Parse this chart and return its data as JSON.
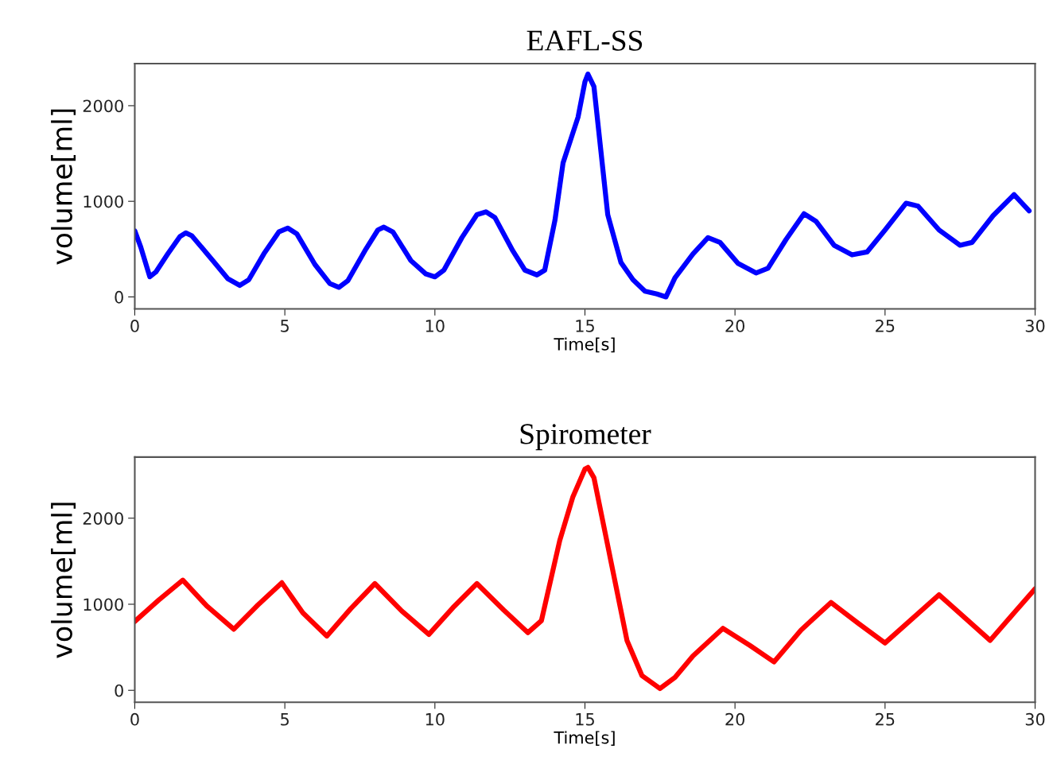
{
  "chart_data": [
    {
      "type": "line",
      "title": "EAFL-SS",
      "xlabel": "Time[s]",
      "ylabel": "volume[ml]",
      "xlim": [
        0,
        30
      ],
      "ylim": [
        -125,
        2440
      ],
      "xticks": [
        0,
        5,
        10,
        15,
        20,
        25,
        30
      ],
      "yticks": [
        0,
        1000,
        2000
      ],
      "grid": false,
      "legend": false,
      "marker": "none",
      "line_style": "solid",
      "series": [
        {
          "color": "#0000ff",
          "x": [
            0,
            0.2,
            0.5,
            0.7,
            1.1,
            1.5,
            1.7,
            1.9,
            2.6,
            3.1,
            3.5,
            3.8,
            4.3,
            4.8,
            5.1,
            5.4,
            6.0,
            6.5,
            6.8,
            7.1,
            7.7,
            8.1,
            8.3,
            8.6,
            9.2,
            9.7,
            10,
            10.3,
            10.9,
            11.4,
            11.7,
            12.0,
            12.6,
            13.0,
            13.4,
            13.66,
            14.0,
            14.27,
            14.77,
            15.0,
            15.1,
            15.3,
            15.76,
            16.2,
            16.6,
            17,
            17.4,
            17.7,
            18.0,
            18.6,
            19.1,
            19.5,
            20.1,
            20.7,
            21.1,
            21.7,
            22.3,
            22.7,
            23.3,
            23.9,
            24.4,
            25.0,
            25.7,
            26.1,
            26.8,
            27.5,
            27.9,
            28.6,
            29.3,
            29.8
          ],
          "values": [
            690,
            520,
            210,
            260,
            450,
            630,
            670,
            640,
            380,
            190,
            120,
            180,
            450,
            680,
            720,
            660,
            340,
            140,
            100,
            170,
            500,
            700,
            730,
            680,
            380,
            240,
            210,
            280,
            620,
            860,
            890,
            830,
            480,
            280,
            230,
            280,
            800,
            1400,
            1880,
            2250,
            2330,
            2200,
            860,
            360,
            180,
            60,
            30,
            0,
            200,
            450,
            620,
            570,
            350,
            250,
            300,
            600,
            870,
            790,
            540,
            440,
            470,
            700,
            980,
            950,
            700,
            540,
            570,
            850,
            1070,
            900
          ]
        }
      ]
    },
    {
      "type": "line",
      "title": "Spirometer",
      "xlabel": "Time[s]",
      "ylabel": "volume[ml]",
      "xlim": [
        0,
        30
      ],
      "ylim": [
        -139,
        2710
      ],
      "xticks": [
        0,
        5,
        10,
        15,
        20,
        25,
        30
      ],
      "yticks": [
        0,
        1000,
        2000
      ],
      "grid": false,
      "legend": false,
      "marker": "none",
      "line_style": "solid",
      "series": [
        {
          "color": "#ff0000",
          "x": [
            0,
            0.8,
            1.6,
            2.4,
            3.3,
            4.1,
            4.9,
            5.6,
            6.4,
            7.2,
            8.0,
            8.9,
            9.8,
            10.6,
            11.4,
            12.3,
            13.1,
            13.55,
            14.16,
            14.6,
            15.0,
            15.1,
            15.3,
            15.86,
            16.4,
            16.9,
            17.5,
            18.0,
            18.6,
            19.6,
            20.5,
            21.3,
            22.2,
            23.2,
            24.1,
            25.0,
            25.9,
            26.8,
            27.7,
            28.5,
            29.3,
            30
          ],
          "values": [
            800,
            1050,
            1280,
            980,
            710,
            990,
            1250,
            900,
            630,
            950,
            1240,
            920,
            650,
            960,
            1240,
            930,
            670,
            810,
            1740,
            2250,
            2570,
            2590,
            2470,
            1510,
            580,
            170,
            20,
            150,
            400,
            720,
            520,
            330,
            700,
            1020,
            780,
            550,
            830,
            1110,
            830,
            580,
            900,
            1180
          ]
        }
      ]
    }
  ]
}
